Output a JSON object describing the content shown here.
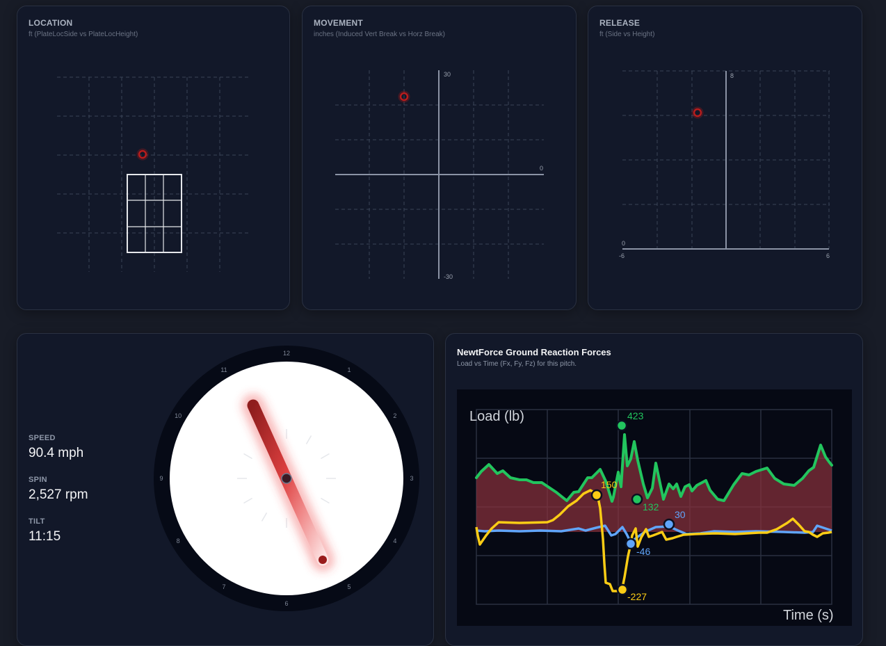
{
  "location": {
    "title": "LOCATION",
    "subtitle": "ft (PlateLocSide vs PlateLocHeight)"
  },
  "movement": {
    "title": "MOVEMENT",
    "subtitle": "inches (Induced Vert Break vs Horz Break)",
    "y_top_label": "30",
    "y_bottom_label": "-30",
    "x_axis_label": "0"
  },
  "release": {
    "title": "RELEASE",
    "subtitle": "ft (Side vs Height)",
    "y_top_label": "8",
    "y_zero_label": "0",
    "x_min_label": "-6",
    "x_max_label": "6"
  },
  "pitch_stats": {
    "speed": {
      "label": "SPEED",
      "value": "90.4 mph"
    },
    "spin": {
      "label": "SPIN",
      "value": "2,527 rpm"
    },
    "tilt": {
      "label": "TILT",
      "value": "11:15"
    }
  },
  "tilt_clock": {
    "hours": [
      "12",
      "1",
      "2",
      "3",
      "4",
      "5",
      "6",
      "7",
      "8",
      "9",
      "10",
      "11"
    ],
    "tilt": "11:15"
  },
  "newtforce": {
    "title": "NewtForce Ground Reaction Forces",
    "subtitle": "Load vs Time (Fx, Fy, Fz) for this pitch.",
    "y_label": "Load (lb)",
    "x_label": "Time (s)",
    "annotations": {
      "fz_max": "423",
      "fz_min": "132",
      "fy_max": "150",
      "fy_min": "-227",
      "fx_max": "30",
      "fx_min": "-46"
    }
  },
  "chart_data": [
    {
      "type": "scatter",
      "title": "LOCATION",
      "subtitle": "ft (PlateLocSide vs PlateLocHeight)",
      "points": [
        {
          "x": -0.4,
          "y": 3.5
        }
      ],
      "strike_zone": true,
      "grid": true
    },
    {
      "type": "scatter",
      "title": "MOVEMENT",
      "subtitle": "inches (Induced Vert Break vs Horz Break)",
      "points": [
        {
          "x": -10,
          "y": 22
        }
      ],
      "xlim": [
        -30,
        30
      ],
      "ylim": [
        -30,
        30
      ],
      "tick_labels": [
        "30",
        "-30",
        "0"
      ],
      "grid": true
    },
    {
      "type": "scatter",
      "title": "RELEASE",
      "subtitle": "ft (Side vs Height)",
      "points": [
        {
          "x": -1.6,
          "y": 6.2
        }
      ],
      "xlim": [
        -6,
        6
      ],
      "ylim": [
        0,
        8
      ],
      "tick_labels": [
        "8",
        "0",
        "-6",
        "6"
      ],
      "grid": true
    },
    {
      "type": "line",
      "title": "NewtForce Ground Reaction Forces",
      "subtitle": "Load vs Time (Fx, Fy, Fz) for this pitch.",
      "xlabel": "Time (s)",
      "ylabel": "Load (lb)",
      "grid": true,
      "series": [
        {
          "name": "Fz",
          "color": "#22c55e",
          "max": 423,
          "min_annotated": 132
        },
        {
          "name": "Fy",
          "color": "#facc15",
          "max": 150,
          "min": -227
        },
        {
          "name": "Fx",
          "color": "#60a5fa",
          "max": 30,
          "min": -46
        }
      ]
    }
  ]
}
